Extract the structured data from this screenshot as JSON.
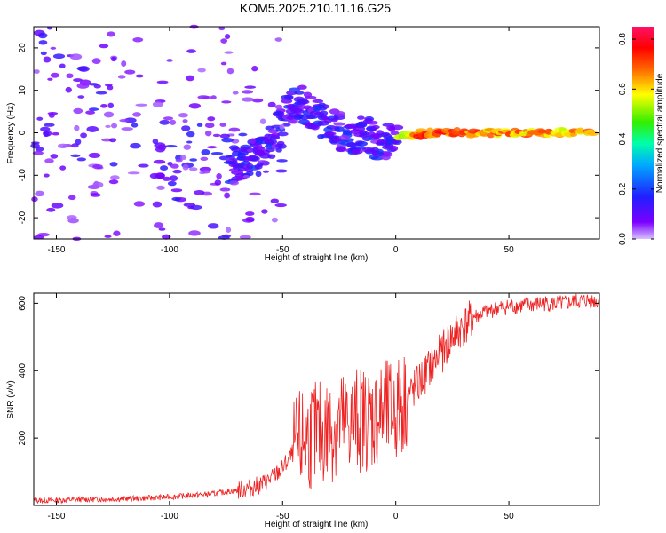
{
  "title": "KOM5.2025.210.11.16.G25",
  "chart_data": [
    {
      "type": "heatmap",
      "xlabel": "Height of straight line (km)",
      "ylabel": "Frequency (Hz)",
      "xlim": [
        -160,
        90
      ],
      "ylim": [
        -25,
        25
      ],
      "x_ticks": [
        -150,
        -100,
        -50,
        0,
        50
      ],
      "y_ticks": [
        -20,
        -10,
        0,
        10,
        20
      ],
      "grid": false,
      "colorbar": {
        "label": "Normalized spectral amplitude",
        "range": [
          0,
          0.85
        ],
        "ticks": [
          0.0,
          0.2,
          0.4,
          0.6,
          0.8
        ],
        "colormap": "rainbow (violet-blue-cyan-green-yellow-red-magenta)"
      },
      "ridge_points": [
        {
          "x": -72,
          "y": -8,
          "z": 0.3
        },
        {
          "x": -65,
          "y": -6,
          "z": 0.35
        },
        {
          "x": -55,
          "y": -2,
          "z": 0.25
        },
        {
          "x": -45,
          "y": 8,
          "z": 0.2
        },
        {
          "x": -38,
          "y": 5,
          "z": 0.25
        },
        {
          "x": -20,
          "y": -1,
          "z": 0.25
        },
        {
          "x": -14,
          "y": 0,
          "z": 0.45
        },
        {
          "x": -7,
          "y": -2.5,
          "z": 0.85
        },
        {
          "x": 0,
          "y": -1,
          "z": 0.6
        },
        {
          "x": 6,
          "y": -0.8,
          "z": 0.7
        },
        {
          "x": 10,
          "y": -0.5,
          "z": 0.8
        },
        {
          "x": 14,
          "y": 0,
          "z": 0.85
        },
        {
          "x": 22,
          "y": 0,
          "z": 0.8
        },
        {
          "x": 35,
          "y": 0,
          "z": 0.75
        },
        {
          "x": 50,
          "y": 0,
          "z": 0.75
        },
        {
          "x": 60,
          "y": 0,
          "z": 0.72
        },
        {
          "x": 75,
          "y": 0,
          "z": 0.72
        },
        {
          "x": 88,
          "y": 0,
          "z": 0.7
        }
      ]
    },
    {
      "type": "line",
      "xlabel": "Height of straight line (km)",
      "ylabel": "SNR (v/v)",
      "xlim": [
        -160,
        90
      ],
      "ylim": [
        0,
        630
      ],
      "x_ticks": [
        -150,
        -100,
        -50,
        0,
        50
      ],
      "y_ticks": [
        200,
        400,
        600
      ],
      "grid": false,
      "series": [
        {
          "color": "#ee2222",
          "x": [
            -160,
            -150,
            -140,
            -130,
            -120,
            -110,
            -100,
            -90,
            -80,
            -70,
            -60,
            -55,
            -50,
            -45,
            -40,
            -35,
            -30,
            -25,
            -20,
            -15,
            -10,
            -5,
            0,
            5,
            10,
            15,
            20,
            25,
            30,
            35,
            40,
            45,
            50,
            55,
            60,
            65,
            70,
            75,
            80,
            85,
            90
          ],
          "y": [
            15,
            15,
            18,
            18,
            20,
            22,
            25,
            30,
            35,
            45,
            60,
            80,
            110,
            160,
            200,
            210,
            220,
            240,
            250,
            260,
            260,
            270,
            280,
            320,
            360,
            410,
            450,
            500,
            530,
            560,
            575,
            585,
            590,
            592,
            595,
            600,
            598,
            600,
            605,
            608,
            605
          ]
        }
      ]
    }
  ]
}
